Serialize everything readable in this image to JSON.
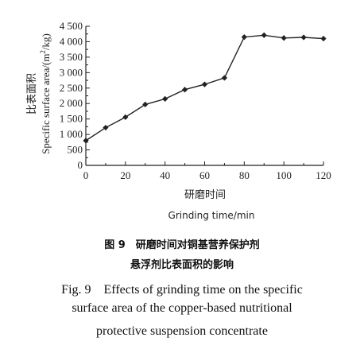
{
  "chart_data": {
    "type": "line",
    "x": [
      0,
      10,
      20,
      30,
      40,
      50,
      60,
      70,
      80,
      90,
      100,
      110,
      120
    ],
    "series": [
      {
        "values": [
          800,
          1220,
          1560,
          1970,
          2150,
          2450,
          2620,
          2830,
          4150,
          4210,
          4120,
          4140,
          4100
        ],
        "color": "#222222"
      }
    ],
    "xlabel_cn": "研磨时间",
    "xlabel_en": "Grinding time/min",
    "ylabel_cn": "比表面积",
    "ylabel_en_pre": "Specific surface area/(m",
    "ylabel_en_sup": "2",
    "ylabel_en_post": "/kg)",
    "xlim": [
      0,
      120
    ],
    "ylim": [
      0,
      4500
    ],
    "xticks": [
      "0",
      "20",
      "40",
      "60",
      "80",
      "100",
      "120"
    ],
    "yticks": [
      "0",
      "500",
      "1 000",
      "1 500",
      "2 000",
      "2 500",
      "3 000",
      "3 500",
      "4 000",
      "4 500"
    ],
    "grid": false,
    "marker": "diamond"
  },
  "caption": {
    "cn_line1": "图 9　研磨时间对铜基营养保护剂",
    "cn_line2": "悬浮剂比表面积的影响",
    "en_line1": "Fig. 9　Effects of grinding time on the specific",
    "en_line2": "surface area of the copper-based nutritional",
    "en_line3": "protective suspension concentrate"
  }
}
